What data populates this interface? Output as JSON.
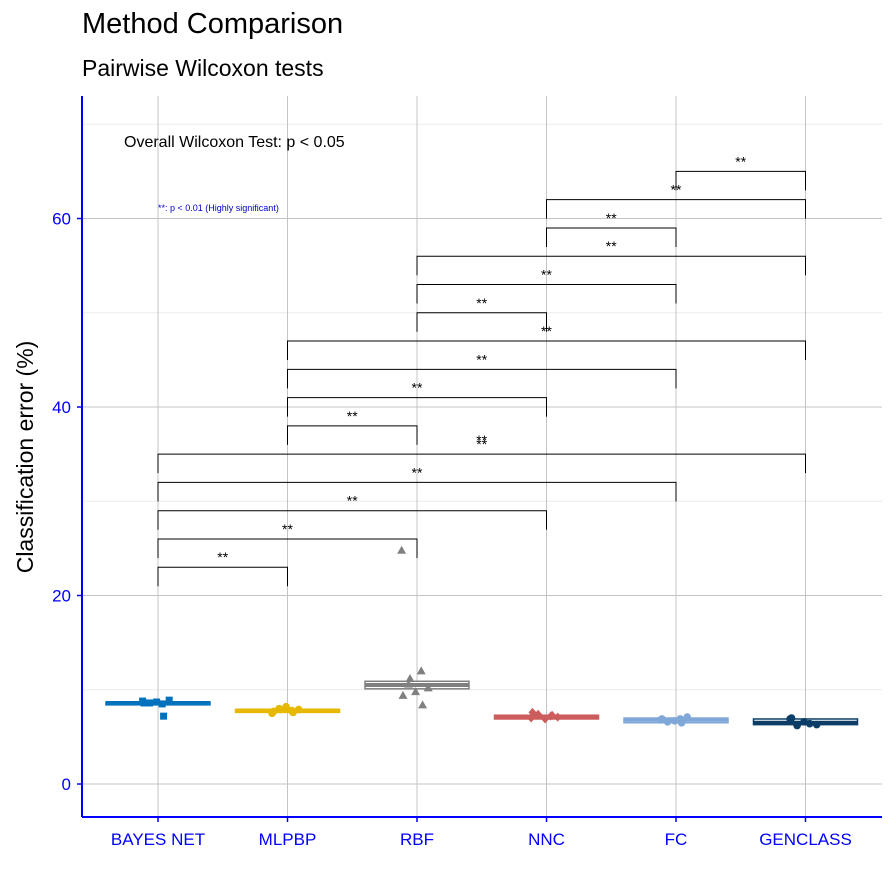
{
  "chart_data": {
    "type": "box",
    "title": "Method Comparison",
    "subtitle": "Pairwise Wilcoxon tests",
    "xlabel": "",
    "ylabel": "Classification error (%)",
    "ylim": [
      -3.5,
      73
    ],
    "yticks": [
      0,
      20,
      40,
      60
    ],
    "grid": true,
    "categories": [
      "BAYES NET",
      "MLPBP",
      "RBF",
      "NNC",
      "FC",
      "GENCLASS"
    ],
    "colors": [
      "#0072BD",
      "#E6B800",
      "#808080",
      "#CD5C5C",
      "#7FA8D8",
      "#0B3D66"
    ],
    "box_stats": [
      {
        "q1": 8.4,
        "median": 8.6,
        "q3": 8.7
      },
      {
        "q1": 7.6,
        "median": 7.8,
        "q3": 7.9
      },
      {
        "q1": 10.1,
        "median": 10.5,
        "q3": 10.9
      },
      {
        "q1": 6.9,
        "median": 7.1,
        "q3": 7.3
      },
      {
        "q1": 6.5,
        "median": 6.8,
        "q3": 7.0
      },
      {
        "q1": 6.3,
        "median": 6.5,
        "q3": 6.9
      }
    ],
    "points": [
      [
        8.8,
        8.5,
        8.6,
        8.9,
        8.7,
        8.6,
        7.2
      ],
      [
        7.5,
        7.8,
        8.0,
        7.9,
        8.2,
        7.7,
        7.6,
        7.9
      ],
      [
        24.8,
        12.0,
        10.6,
        10.2,
        9.8,
        9.4,
        8.4,
        11.2
      ],
      [
        7.0,
        7.2,
        7.4,
        7.1,
        6.9,
        7.6,
        7.3
      ],
      [
        6.8,
        6.9,
        6.6,
        7.1,
        6.7,
        6.9,
        6.5
      ],
      [
        6.9,
        6.4,
        6.2,
        6.3,
        6.6,
        7.0
      ]
    ],
    "annotation_overall": "Overall Wilcoxon Test: p < 0.05",
    "annotation_legend": "**: p < 0.01 (Highly significant)",
    "comparisons": [
      {
        "from": 0,
        "to": 1,
        "y": 23.0,
        "label": "**"
      },
      {
        "from": 0,
        "to": 2,
        "y": 26.0,
        "label": "**"
      },
      {
        "from": 0,
        "to": 3,
        "y": 29.0,
        "label": "**"
      },
      {
        "from": 0,
        "to": 4,
        "y": 32.0,
        "label": "**"
      },
      {
        "from": 0,
        "to": 5,
        "y": 35.0,
        "label": "**"
      },
      {
        "from": 1,
        "to": 2,
        "y": 38.0,
        "label": "**"
      },
      {
        "from": 1,
        "to": 3,
        "y": 41.0,
        "label": "**"
      },
      {
        "from": 1,
        "to": 4,
        "y": 44.0,
        "label": "**"
      },
      {
        "from": 1,
        "to": 5,
        "y": 47.0,
        "label": "**"
      },
      {
        "from": 2,
        "to": 3,
        "y": 50.0,
        "label": "**"
      },
      {
        "from": 2,
        "to": 4,
        "y": 53.0,
        "label": "**"
      },
      {
        "from": 2,
        "to": 5,
        "y": 56.0,
        "label": "**"
      },
      {
        "from": 3,
        "to": 4,
        "y": 59.0,
        "label": "**"
      },
      {
        "from": 3,
        "to": 5,
        "y": 62.0,
        "label": "**"
      },
      {
        "from": 4,
        "to": 5,
        "y": 65.0,
        "label": "**"
      }
    ],
    "stray_labels": [
      {
        "x": 2.5,
        "y": 36.5,
        "label": "**"
      }
    ]
  }
}
